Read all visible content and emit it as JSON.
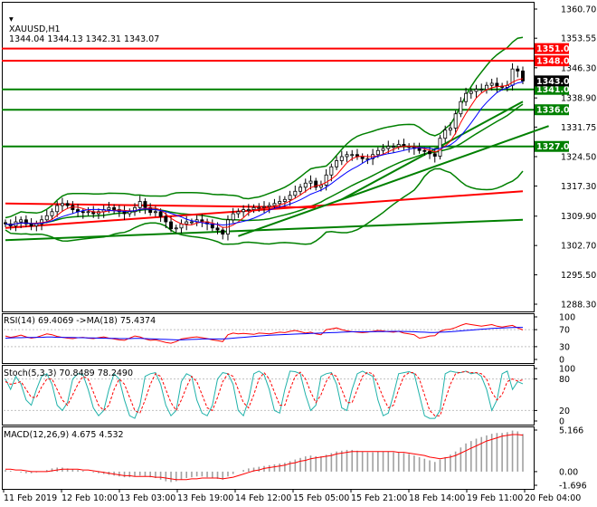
{
  "header": {
    "symbol": "XAUUSD,H1",
    "ohlc": "1344.04 1344.13 1342.31 1343.07"
  },
  "colors": {
    "candle": "#000000",
    "bands": "#008000",
    "resistance": "#ff0000",
    "support": "#008000",
    "ma_fast": "#ff0000",
    "ma_slow": "#0000ff",
    "price_tag": "#000000"
  },
  "chart_data": [
    {
      "type": "line",
      "panel": "price",
      "title": "XAUUSD,H1",
      "y_axis_ticks": [
        "1360.70",
        "1353.55",
        "1346.30",
        "1338.90",
        "1331.75",
        "1324.50",
        "1317.30",
        "1309.90",
        "1302.70",
        "1295.50",
        "1288.30"
      ],
      "ylim": [
        1288.3,
        1360.7
      ],
      "x_axis_ticks": [
        "11 Feb 2019",
        "12 Feb 10:00",
        "13 Feb 03:00",
        "13 Feb 19:00",
        "14 Feb 12:00",
        "15 Feb 05:00",
        "15 Feb 21:00",
        "18 Feb 14:00",
        "19 Feb 11:00",
        "20 Feb 04:00"
      ],
      "horizontal_levels": [
        {
          "label": "1351.00",
          "value": 1351.0,
          "color": "#ff0000"
        },
        {
          "label": "1348.00",
          "value": 1348.0,
          "color": "#ff0000"
        },
        {
          "label": "1341.00",
          "value": 1341.0,
          "color": "#008000"
        },
        {
          "label": "1336.00",
          "value": 1336.0,
          "color": "#008000"
        },
        {
          "label": "1327.00",
          "value": 1327.0,
          "color": "#008000"
        }
      ],
      "current_price_label": "1343.07",
      "close_series": [
        1308,
        1307.5,
        1308.5,
        1309,
        1308,
        1307.5,
        1308,
        1309,
        1310,
        1311,
        1312.5,
        1313,
        1312.5,
        1311.5,
        1311,
        1310.8,
        1311,
        1310.5,
        1311,
        1311.5,
        1312,
        1311.5,
        1311,
        1310.5,
        1311,
        1312,
        1313.5,
        1312,
        1310.8,
        1311,
        1309.8,
        1308.5,
        1306.8,
        1307,
        1308,
        1308.5,
        1308.5,
        1309,
        1308.5,
        1308,
        1307,
        1306.5,
        1305.5,
        1309,
        1310.5,
        1311,
        1311.5,
        1311.5,
        1312,
        1312,
        1312.2,
        1312.5,
        1313,
        1313.5,
        1314,
        1315,
        1316,
        1317,
        1318,
        1318.5,
        1317,
        1317.5,
        1320,
        1322,
        1323.5,
        1324.5,
        1325,
        1325,
        1324.5,
        1324,
        1324,
        1325,
        1326,
        1326.5,
        1327,
        1327,
        1327.5,
        1327,
        1326.8,
        1326.5,
        1326,
        1325.8,
        1325.2,
        1324.6,
        1329,
        1331,
        1331.5,
        1335,
        1338,
        1340,
        1340.5,
        1341,
        1341,
        1342,
        1342.5,
        1341.8,
        1341.5,
        1342,
        1346,
        1345.5,
        1343.07
      ]
    },
    {
      "type": "line",
      "panel": "rsi",
      "title": "RSI(14) 69.4069 ->MA(18) 75.4374",
      "y_axis_ticks": [
        "100",
        "70",
        "30",
        "0"
      ],
      "ylim": [
        0,
        100
      ],
      "series": [
        {
          "name": "RSI(14)",
          "values": [
            55,
            52,
            54,
            57,
            53,
            50,
            52,
            56,
            60,
            58,
            54,
            52,
            50,
            49,
            51,
            52,
            50,
            49,
            51,
            53,
            50,
            48,
            46,
            45,
            50,
            55,
            53,
            48,
            45,
            46,
            43,
            40,
            38,
            42,
            48,
            50,
            52,
            53,
            51,
            49,
            46,
            44,
            42,
            58,
            62,
            60,
            61,
            60,
            59,
            62,
            61,
            60,
            62,
            64,
            63,
            66,
            68,
            65,
            62,
            64,
            60,
            58,
            70,
            72,
            74,
            70,
            67,
            65,
            64,
            63,
            64,
            66,
            68,
            67,
            65,
            64,
            66,
            62,
            60,
            58,
            50,
            52,
            55,
            56,
            66,
            70,
            71,
            75,
            80,
            84,
            82,
            80,
            78,
            80,
            82,
            78,
            76,
            78,
            80,
            74,
            69.4
          ]
        },
        {
          "name": "MA(18)",
          "values": [
            50,
            50.5,
            51,
            51,
            51.5,
            51.5,
            52,
            52,
            52.5,
            52.5,
            52,
            52,
            51.5,
            51.5,
            51,
            51,
            50.5,
            50.5,
            50,
            50,
            49.5,
            49.5,
            49,
            49,
            49,
            49.5,
            49.5,
            49,
            48.5,
            48,
            47.5,
            47,
            46.5,
            46,
            46,
            46.5,
            47,
            47.5,
            48,
            48,
            48,
            48,
            48,
            49,
            50,
            51,
            52,
            53,
            54,
            55,
            56,
            57,
            57.5,
            58,
            58.5,
            59,
            59.5,
            60,
            60.5,
            61,
            61.5,
            62,
            62.5,
            63,
            63.5,
            64,
            64.5,
            65,
            65,
            65,
            65,
            65.2,
            65.4,
            65.6,
            65.8,
            66,
            66,
            65.8,
            65.5,
            65,
            64.5,
            64,
            63.5,
            63.5,
            64,
            64.5,
            65,
            66,
            67,
            68,
            69,
            70,
            71,
            72,
            73,
            73.5,
            74,
            74.5,
            75,
            75.3,
            75.4
          ]
        }
      ]
    },
    {
      "type": "line",
      "panel": "stochastic",
      "title": "Stoch(5,3,3) 70.8489 78.2490",
      "y_axis_ticks": [
        "100",
        "80",
        "20",
        "0"
      ],
      "ylim": [
        0,
        100
      ],
      "series": [
        {
          "name": "%K",
          "values": [
            80,
            60,
            85,
            70,
            40,
            30,
            60,
            85,
            90,
            70,
            30,
            20,
            35,
            80,
            90,
            88,
            60,
            25,
            10,
            20,
            60,
            90,
            80,
            40,
            10,
            5,
            30,
            85,
            90,
            92,
            70,
            30,
            10,
            20,
            75,
            90,
            85,
            40,
            15,
            10,
            30,
            80,
            92,
            90,
            70,
            20,
            10,
            40,
            90,
            95,
            88,
            60,
            20,
            15,
            60,
            95,
            94,
            90,
            50,
            20,
            30,
            85,
            90,
            92,
            70,
            25,
            20,
            60,
            90,
            95,
            90,
            85,
            40,
            10,
            15,
            50,
            90,
            92,
            94,
            90,
            50,
            10,
            5,
            5,
            20,
            90,
            95,
            93,
            92,
            95,
            90,
            92,
            85,
            60,
            20,
            40,
            90,
            95,
            60,
            75,
            70.8
          ]
        },
        {
          "name": "%D",
          "values": [
            75,
            70,
            72,
            75,
            60,
            45,
            45,
            65,
            80,
            80,
            60,
            40,
            30,
            50,
            70,
            85,
            80,
            55,
            30,
            20,
            30,
            60,
            80,
            70,
            45,
            20,
            15,
            40,
            70,
            90,
            85,
            60,
            35,
            20,
            40,
            65,
            85,
            75,
            50,
            25,
            20,
            45,
            75,
            90,
            85,
            60,
            35,
            25,
            50,
            80,
            92,
            80,
            55,
            30,
            30,
            60,
            85,
            93,
            80,
            55,
            35,
            50,
            75,
            90,
            85,
            60,
            35,
            35,
            60,
            85,
            93,
            90,
            70,
            45,
            25,
            30,
            60,
            85,
            92,
            92,
            80,
            50,
            20,
            10,
            10,
            40,
            70,
            90,
            93,
            94,
            92,
            92,
            90,
            80,
            55,
            40,
            50,
            75,
            80,
            76,
            78.2
          ]
        }
      ]
    },
    {
      "type": "bar",
      "panel": "macd",
      "title": "MACD(12,26,9) 4.675 4.532",
      "y_axis_ticks": [
        "5.166",
        "0.00",
        "-1.696"
      ],
      "ylim": [
        -1.696,
        5.166
      ],
      "series": [
        {
          "name": "MACD",
          "values": [
            0.2,
            0.1,
            0.0,
            -0.1,
            -0.2,
            -0.2,
            -0.1,
            0.0,
            0.2,
            0.4,
            0.5,
            0.5,
            0.4,
            0.3,
            0.2,
            0.1,
            0.0,
            -0.1,
            -0.2,
            -0.3,
            -0.4,
            -0.5,
            -0.6,
            -0.7,
            -0.7,
            -0.6,
            -0.5,
            -0.6,
            -0.7,
            -0.8,
            -1.0,
            -1.2,
            -1.3,
            -1.2,
            -1.0,
            -0.8,
            -0.7,
            -0.6,
            -0.6,
            -0.7,
            -0.8,
            -0.9,
            -1.0,
            -0.6,
            -0.3,
            0.0,
            0.2,
            0.4,
            0.5,
            0.6,
            0.7,
            0.8,
            0.9,
            1.0,
            1.1,
            1.3,
            1.5,
            1.7,
            1.9,
            2.0,
            1.9,
            1.9,
            2.1,
            2.3,
            2.5,
            2.6,
            2.7,
            2.7,
            2.6,
            2.5,
            2.4,
            2.4,
            2.5,
            2.5,
            2.5,
            2.4,
            2.4,
            2.3,
            2.2,
            2.0,
            1.8,
            1.6,
            1.4,
            1.2,
            1.5,
            1.8,
            2.1,
            2.5,
            3.0,
            3.5,
            3.8,
            4.1,
            4.3,
            4.5,
            4.7,
            4.8,
            4.8,
            4.9,
            5.1,
            5.0,
            4.675
          ]
        },
        {
          "name": "Signal",
          "values": [
            0.3,
            0.3,
            0.2,
            0.2,
            0.1,
            0.0,
            0.0,
            0.0,
            0.0,
            0.1,
            0.2,
            0.3,
            0.3,
            0.3,
            0.3,
            0.2,
            0.2,
            0.1,
            0.0,
            -0.1,
            -0.2,
            -0.3,
            -0.4,
            -0.5,
            -0.5,
            -0.6,
            -0.6,
            -0.6,
            -0.6,
            -0.7,
            -0.7,
            -0.8,
            -0.9,
            -1.0,
            -1.0,
            -1.0,
            -0.9,
            -0.9,
            -0.8,
            -0.8,
            -0.8,
            -0.8,
            -0.9,
            -0.8,
            -0.7,
            -0.5,
            -0.3,
            -0.1,
            0.1,
            0.2,
            0.4,
            0.5,
            0.6,
            0.7,
            0.8,
            1.0,
            1.1,
            1.3,
            1.4,
            1.6,
            1.7,
            1.8,
            1.9,
            2.0,
            2.2,
            2.3,
            2.4,
            2.5,
            2.5,
            2.5,
            2.5,
            2.5,
            2.5,
            2.5,
            2.5,
            2.5,
            2.4,
            2.4,
            2.3,
            2.2,
            2.1,
            2.0,
            1.8,
            1.7,
            1.6,
            1.7,
            1.8,
            2.0,
            2.3,
            2.6,
            2.9,
            3.2,
            3.5,
            3.8,
            4.0,
            4.2,
            4.4,
            4.5,
            4.6,
            4.6,
            4.532
          ]
        }
      ]
    }
  ]
}
